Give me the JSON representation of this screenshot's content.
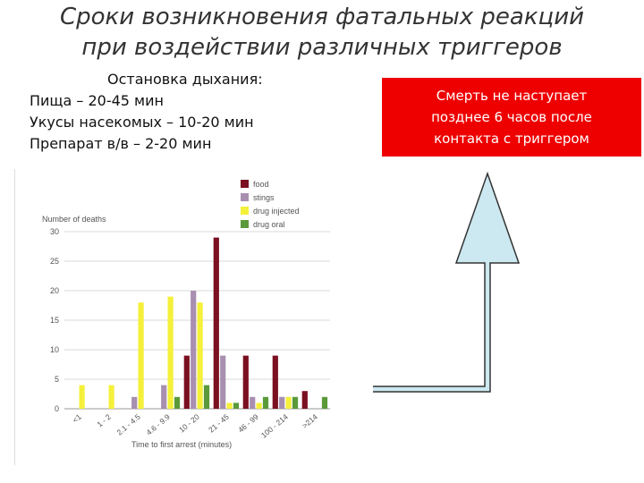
{
  "slide": {
    "title_line1": "Сроки возникновения фатальных реакций",
    "title_line2": "при воздействии различных триггеров",
    "resp_header": "Остановка дыхания:",
    "resp_lines": [
      "Пища  – 20-45 мин",
      "Укусы насекомых – 10-20 мин",
      "Препарат в/в – 2-20 мин"
    ],
    "box_lines": [
      "Смерть не наступает",
      "позднее 6 часов после",
      "контакта с триггером"
    ],
    "arrow_color": "#cce8f0"
  },
  "chart_data": {
    "type": "bar",
    "ylabel": "Number of deaths",
    "xlabel": "Time to first arrest (minutes)",
    "ylim": [
      0,
      30
    ],
    "yticks": [
      0,
      5,
      10,
      15,
      20,
      25,
      30
    ],
    "grid": true,
    "legend_position": "top-right",
    "categories": [
      "<1",
      "1 - 2",
      "2.1 - 4.5",
      "4.6 - 9.9",
      "10 - 20",
      "21 - 45",
      "46 - 99",
      "100 - 214",
      ">214"
    ],
    "series": [
      {
        "name": "food",
        "color": "#7a1020",
        "values": [
          0,
          0,
          0,
          0,
          9,
          29,
          9,
          9,
          3
        ]
      },
      {
        "name": "stings",
        "color": "#a88fb0",
        "values": [
          0,
          0,
          2,
          4,
          20,
          9,
          2,
          2,
          0
        ]
      },
      {
        "name": "drug injected",
        "color": "#f5f03a",
        "values": [
          4,
          4,
          18,
          19,
          18,
          1,
          1,
          2,
          0
        ]
      },
      {
        "name": "drug oral",
        "color": "#5a9a3a",
        "values": [
          0,
          0,
          0,
          2,
          4,
          1,
          2,
          2,
          2
        ]
      }
    ]
  }
}
